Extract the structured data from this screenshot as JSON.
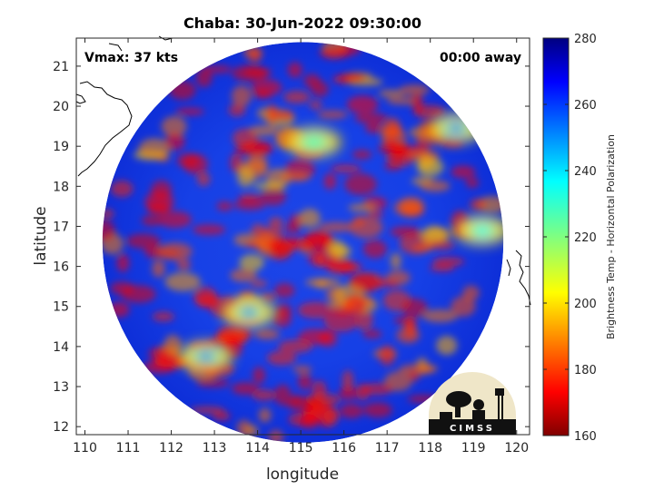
{
  "chart_data": {
    "type": "heatmap",
    "title": "Chaba: 30-Jun-2022 09:30:00",
    "xlabel": "longitude",
    "ylabel": "latitude",
    "xlim": [
      109.8,
      120.3
    ],
    "ylim": [
      11.8,
      21.7
    ],
    "xticks": [
      "110",
      "111",
      "112",
      "113",
      "114",
      "115",
      "116",
      "117",
      "118",
      "119",
      "120"
    ],
    "yticks": [
      "12",
      "13",
      "14",
      "15",
      "16",
      "17",
      "18",
      "19",
      "20",
      "21"
    ],
    "annotations": {
      "vmax": "Vmax: 37 kts",
      "away": "00:00 away"
    },
    "colorbar": {
      "label": "Brightness Temp - Horizontal Polarization",
      "range": [
        160,
        280
      ],
      "ticks": [
        "280",
        "260",
        "240",
        "220",
        "200",
        "180",
        "160"
      ],
      "colormap": "jet"
    },
    "swath": {
      "center": [
        115.05,
        16.6
      ],
      "radius_deg": 5.0
    },
    "features": [
      {
        "lon": 113.8,
        "lat": 14.85,
        "tb": 185
      },
      {
        "lon": 112.8,
        "lat": 13.75,
        "tb": 182
      },
      {
        "lon": 118.6,
        "lat": 19.45,
        "tb": 180
      },
      {
        "lon": 119.2,
        "lat": 16.9,
        "tb": 205
      },
      {
        "lon": 115.3,
        "lat": 19.1,
        "tb": 212
      }
    ],
    "grid": false
  },
  "logo": {
    "text": "CIMSS"
  }
}
